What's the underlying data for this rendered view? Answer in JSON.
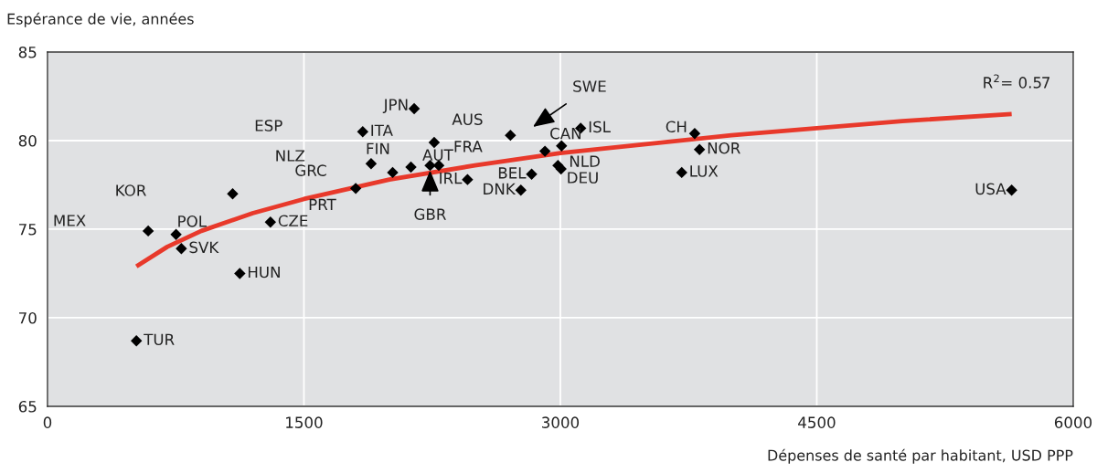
{
  "chart_data": {
    "type": "scatter",
    "xlabel": "Dépenses de santé par habitant, USD PPP",
    "ylabel": "Espérance de vie, années",
    "xlim": [
      0,
      6000
    ],
    "xticks": [
      0,
      1500,
      3000,
      4500,
      6000
    ],
    "ylim": [
      65,
      85
    ],
    "yticks": [
      65,
      70,
      75,
      80,
      85
    ],
    "grid": true,
    "legend": false,
    "marker": "diamond",
    "series": [
      {
        "color": "#000000",
        "x": [
          520,
          589,
          752,
          783,
          1083,
          1125,
          1304,
          1803,
          1844,
          2145,
          1893,
          2019,
          2126,
          2262,
          2238,
          2289,
          2457,
          2708,
          2832,
          2769,
          2910,
          3007,
          2986,
          3004,
          3119,
          3786,
          3814,
          3710,
          5640
        ],
        "values": [
          68.7,
          74.9,
          74.7,
          73.9,
          77.0,
          72.5,
          75.4,
          77.3,
          80.5,
          81.8,
          78.7,
          78.2,
          78.5,
          79.9,
          78.6,
          78.6,
          77.8,
          80.3,
          78.1,
          77.2,
          79.4,
          79.7,
          78.6,
          78.4,
          80.7,
          80.4,
          79.5,
          78.2,
          77.2
        ]
      },
      {
        "type": "line",
        "color": "#e8392b",
        "marker": "none",
        "line_style": "solid",
        "x": [
          520,
          700,
          900,
          1200,
          1500,
          2000,
          2500,
          3000,
          3500,
          4000,
          4500,
          5000,
          5640
        ],
        "values": [
          72.9,
          74.0,
          74.9,
          75.9,
          76.7,
          77.8,
          78.6,
          79.3,
          79.8,
          80.3,
          80.7,
          81.1,
          81.5
        ]
      }
    ],
    "annotations": [
      {
        "text": "TUR",
        "x": 520,
        "y": 68.7
      },
      "MEX",
      {
        "text": "POL",
        "x": 752,
        "y": 74.7
      },
      {
        "text": "SVK",
        "x": 783,
        "y": 73.9
      },
      "KOR",
      {
        "text": "HUN",
        "x": 1125,
        "y": 72.5
      },
      {
        "text": "CZE",
        "x": 1304,
        "y": 75.4
      },
      {
        "text": "PRT",
        "x": 1803,
        "y": 77.3
      },
      "GRC",
      "NLZ",
      "ESP",
      {
        "text": "ITA",
        "x": 1844,
        "y": 80.5
      },
      {
        "text": "JPN",
        "x": 2145,
        "y": 81.8
      },
      {
        "text": "FIN",
        "x": 1893,
        "y": 78.7
      },
      {
        "text": "AUT",
        "x": 2289,
        "y": 78.6
      },
      {
        "text": "FRA",
        "x": 2262,
        "y": 79.9
      },
      {
        "text": "AUS",
        "x": 2708,
        "y": 80.3
      },
      {
        "text": "IRL",
        "x": 2457,
        "y": 77.8
      },
      {
        "text": "GBR",
        "x": 2238,
        "y": 78.6
      },
      {
        "text": "BEL",
        "x": 2832,
        "y": 78.1
      },
      {
        "text": "DNK",
        "x": 2769,
        "y": 77.2
      },
      "SWE",
      {
        "text": "CAN",
        "x": 2910,
        "y": 79.4
      },
      {
        "text": "ISL",
        "x": 3119,
        "y": 80.7
      },
      {
        "text": "NLD",
        "x": 2986,
        "y": 78.6
      },
      {
        "text": "DEU",
        "x": 3004,
        "y": 78.4
      },
      {
        "text": "CH",
        "x": 3786,
        "y": 80.4
      },
      {
        "text": "NOR",
        "x": 3814,
        "y": 79.5
      },
      {
        "text": "LUX",
        "x": 3710,
        "y": 78.2
      },
      {
        "text": "USA",
        "x": 5640,
        "y": 77.2
      },
      "R$^{2}$= 0.57"
    ]
  }
}
